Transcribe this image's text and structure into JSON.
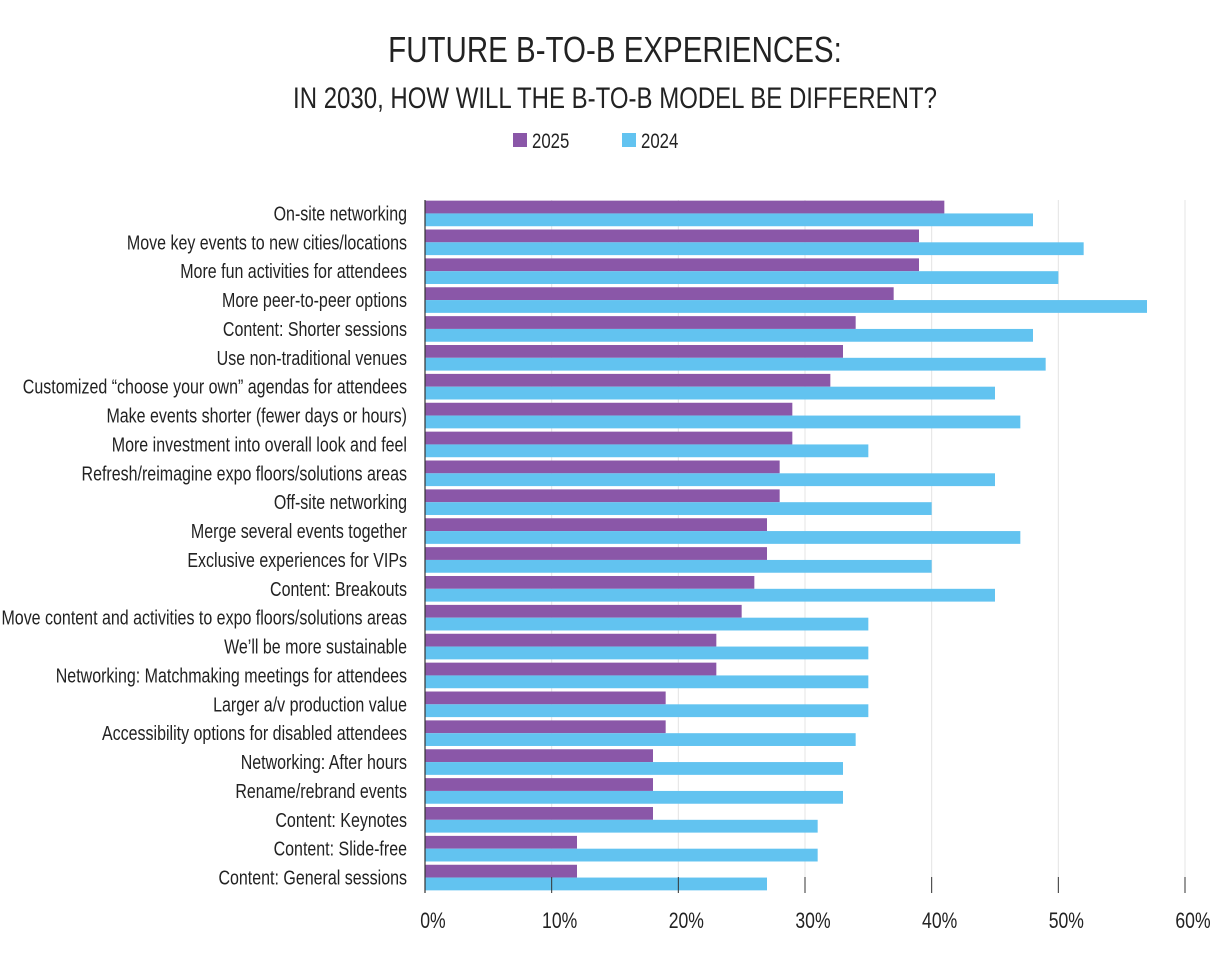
{
  "chart_data": {
    "type": "bar",
    "orientation": "horizontal",
    "title": "FUTURE B-TO-B EXPERIENCES:",
    "subtitle": "IN 2030, HOW WILL THE B-TO-B MODEL BE DIFFERENT?",
    "xlabel": "",
    "ylabel": "",
    "xlim": [
      0,
      60
    ],
    "x_ticks": [
      "0%",
      "10%",
      "20%",
      "30%",
      "40%",
      "50%",
      "60%"
    ],
    "grid": true,
    "legend_position": "top-center",
    "categories": [
      "On-site networking",
      "Move key events to new cities/locations",
      "More fun activities for attendees",
      "More peer-to-peer options",
      "Content: Shorter sessions",
      "Use non-traditional venues",
      "Customized “choose your own” agendas for attendees",
      "Make events shorter (fewer days or hours)",
      "More investment into overall look and feel",
      "Refresh/reimagine expo floors/solutions areas",
      "Off-site networking",
      "Merge several events together",
      "Exclusive experiences for VIPs",
      "Content: Breakouts",
      "Move content and activities to expo floors/solutions areas",
      "We’ll be more sustainable",
      "Networking: Matchmaking meetings for attendees",
      "Larger a/v production value",
      "Accessibility options for disabled attendees",
      "Networking: After hours",
      "Rename/rebrand events",
      "Content: Keynotes",
      "Content: Slide-free",
      "Content: General sessions"
    ],
    "series": [
      {
        "name": "2025",
        "color": "#8a57a8",
        "values": [
          41,
          39,
          39,
          37,
          34,
          33,
          32,
          29,
          29,
          28,
          28,
          27,
          27,
          26,
          25,
          23,
          23,
          19,
          19,
          18,
          18,
          18,
          12,
          12
        ]
      },
      {
        "name": "2024",
        "color": "#62c3f0",
        "values": [
          48,
          52,
          50,
          57,
          48,
          49,
          45,
          47,
          35,
          45,
          40,
          47,
          40,
          45,
          35,
          35,
          35,
          35,
          34,
          33,
          33,
          31,
          31,
          27
        ]
      }
    ]
  }
}
